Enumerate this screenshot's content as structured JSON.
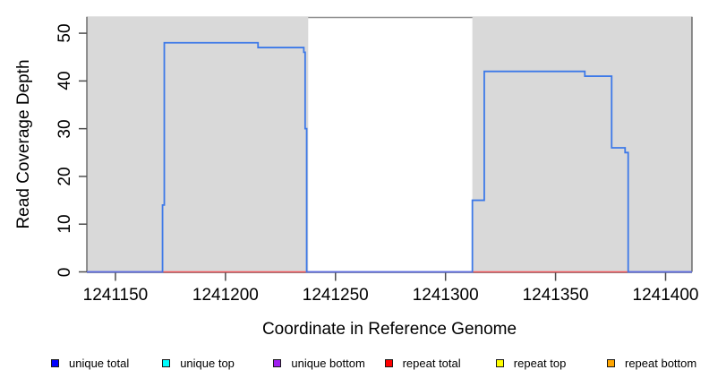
{
  "chart_data": {
    "type": "line",
    "title": "",
    "xlabel": "Coordinate in Reference Genome",
    "ylabel": "Read Coverage Depth",
    "xlim": [
      1241137,
      1241412
    ],
    "ylim": [
      0,
      53.3
    ],
    "x_ticks": [
      1241150,
      1241200,
      1241250,
      1241300,
      1241350,
      1241400
    ],
    "y_ticks": [
      0,
      10,
      20,
      30,
      40,
      50
    ],
    "grid": false,
    "legend_position": "bottom",
    "background_color": "#ffffff",
    "shaded_regions": [
      {
        "x0": 1241137,
        "x1": 1241237.6,
        "color": "#d9d9d9"
      },
      {
        "x0": 1241312.2,
        "x1": 1241412,
        "color": "#d9d9d9"
      }
    ],
    "series": [
      {
        "name": "unique total",
        "color": "#3d79e8",
        "points": [
          [
            1241137,
            0
          ],
          [
            1241171.4,
            0
          ],
          [
            1241171.4,
            14
          ],
          [
            1241172.2,
            14
          ],
          [
            1241172.2,
            48
          ],
          [
            1241214.8,
            48
          ],
          [
            1241214.8,
            47
          ],
          [
            1241235.6,
            47
          ],
          [
            1241235.6,
            46
          ],
          [
            1241236.2,
            46
          ],
          [
            1241236.2,
            30
          ],
          [
            1241236.9,
            30
          ],
          [
            1241236.9,
            0
          ],
          [
            1241312.2,
            0
          ],
          [
            1241312.2,
            15
          ],
          [
            1241317.6,
            15
          ],
          [
            1241317.6,
            42
          ],
          [
            1241363.3,
            42
          ],
          [
            1241363.3,
            41
          ],
          [
            1241375.5,
            41
          ],
          [
            1241375.5,
            26
          ],
          [
            1241381.6,
            26
          ],
          [
            1241381.6,
            25
          ],
          [
            1241383,
            25
          ],
          [
            1241383,
            0
          ],
          [
            1241412,
            0
          ]
        ]
      },
      {
        "name": "repeat total",
        "color": "#f2555c",
        "points": [
          [
            1241137,
            0
          ],
          [
            1241412,
            0
          ]
        ]
      }
    ],
    "legend": [
      {
        "label": "unique total",
        "color": "#0000ff"
      },
      {
        "label": "unique top",
        "color": "#00ffff"
      },
      {
        "label": "unique bottom",
        "color": "#a020f0"
      },
      {
        "label": "repeat total",
        "color": "#ff0000"
      },
      {
        "label": "repeat top",
        "color": "#ffff00"
      },
      {
        "label": "repeat bottom",
        "color": "#ffa500"
      }
    ]
  }
}
